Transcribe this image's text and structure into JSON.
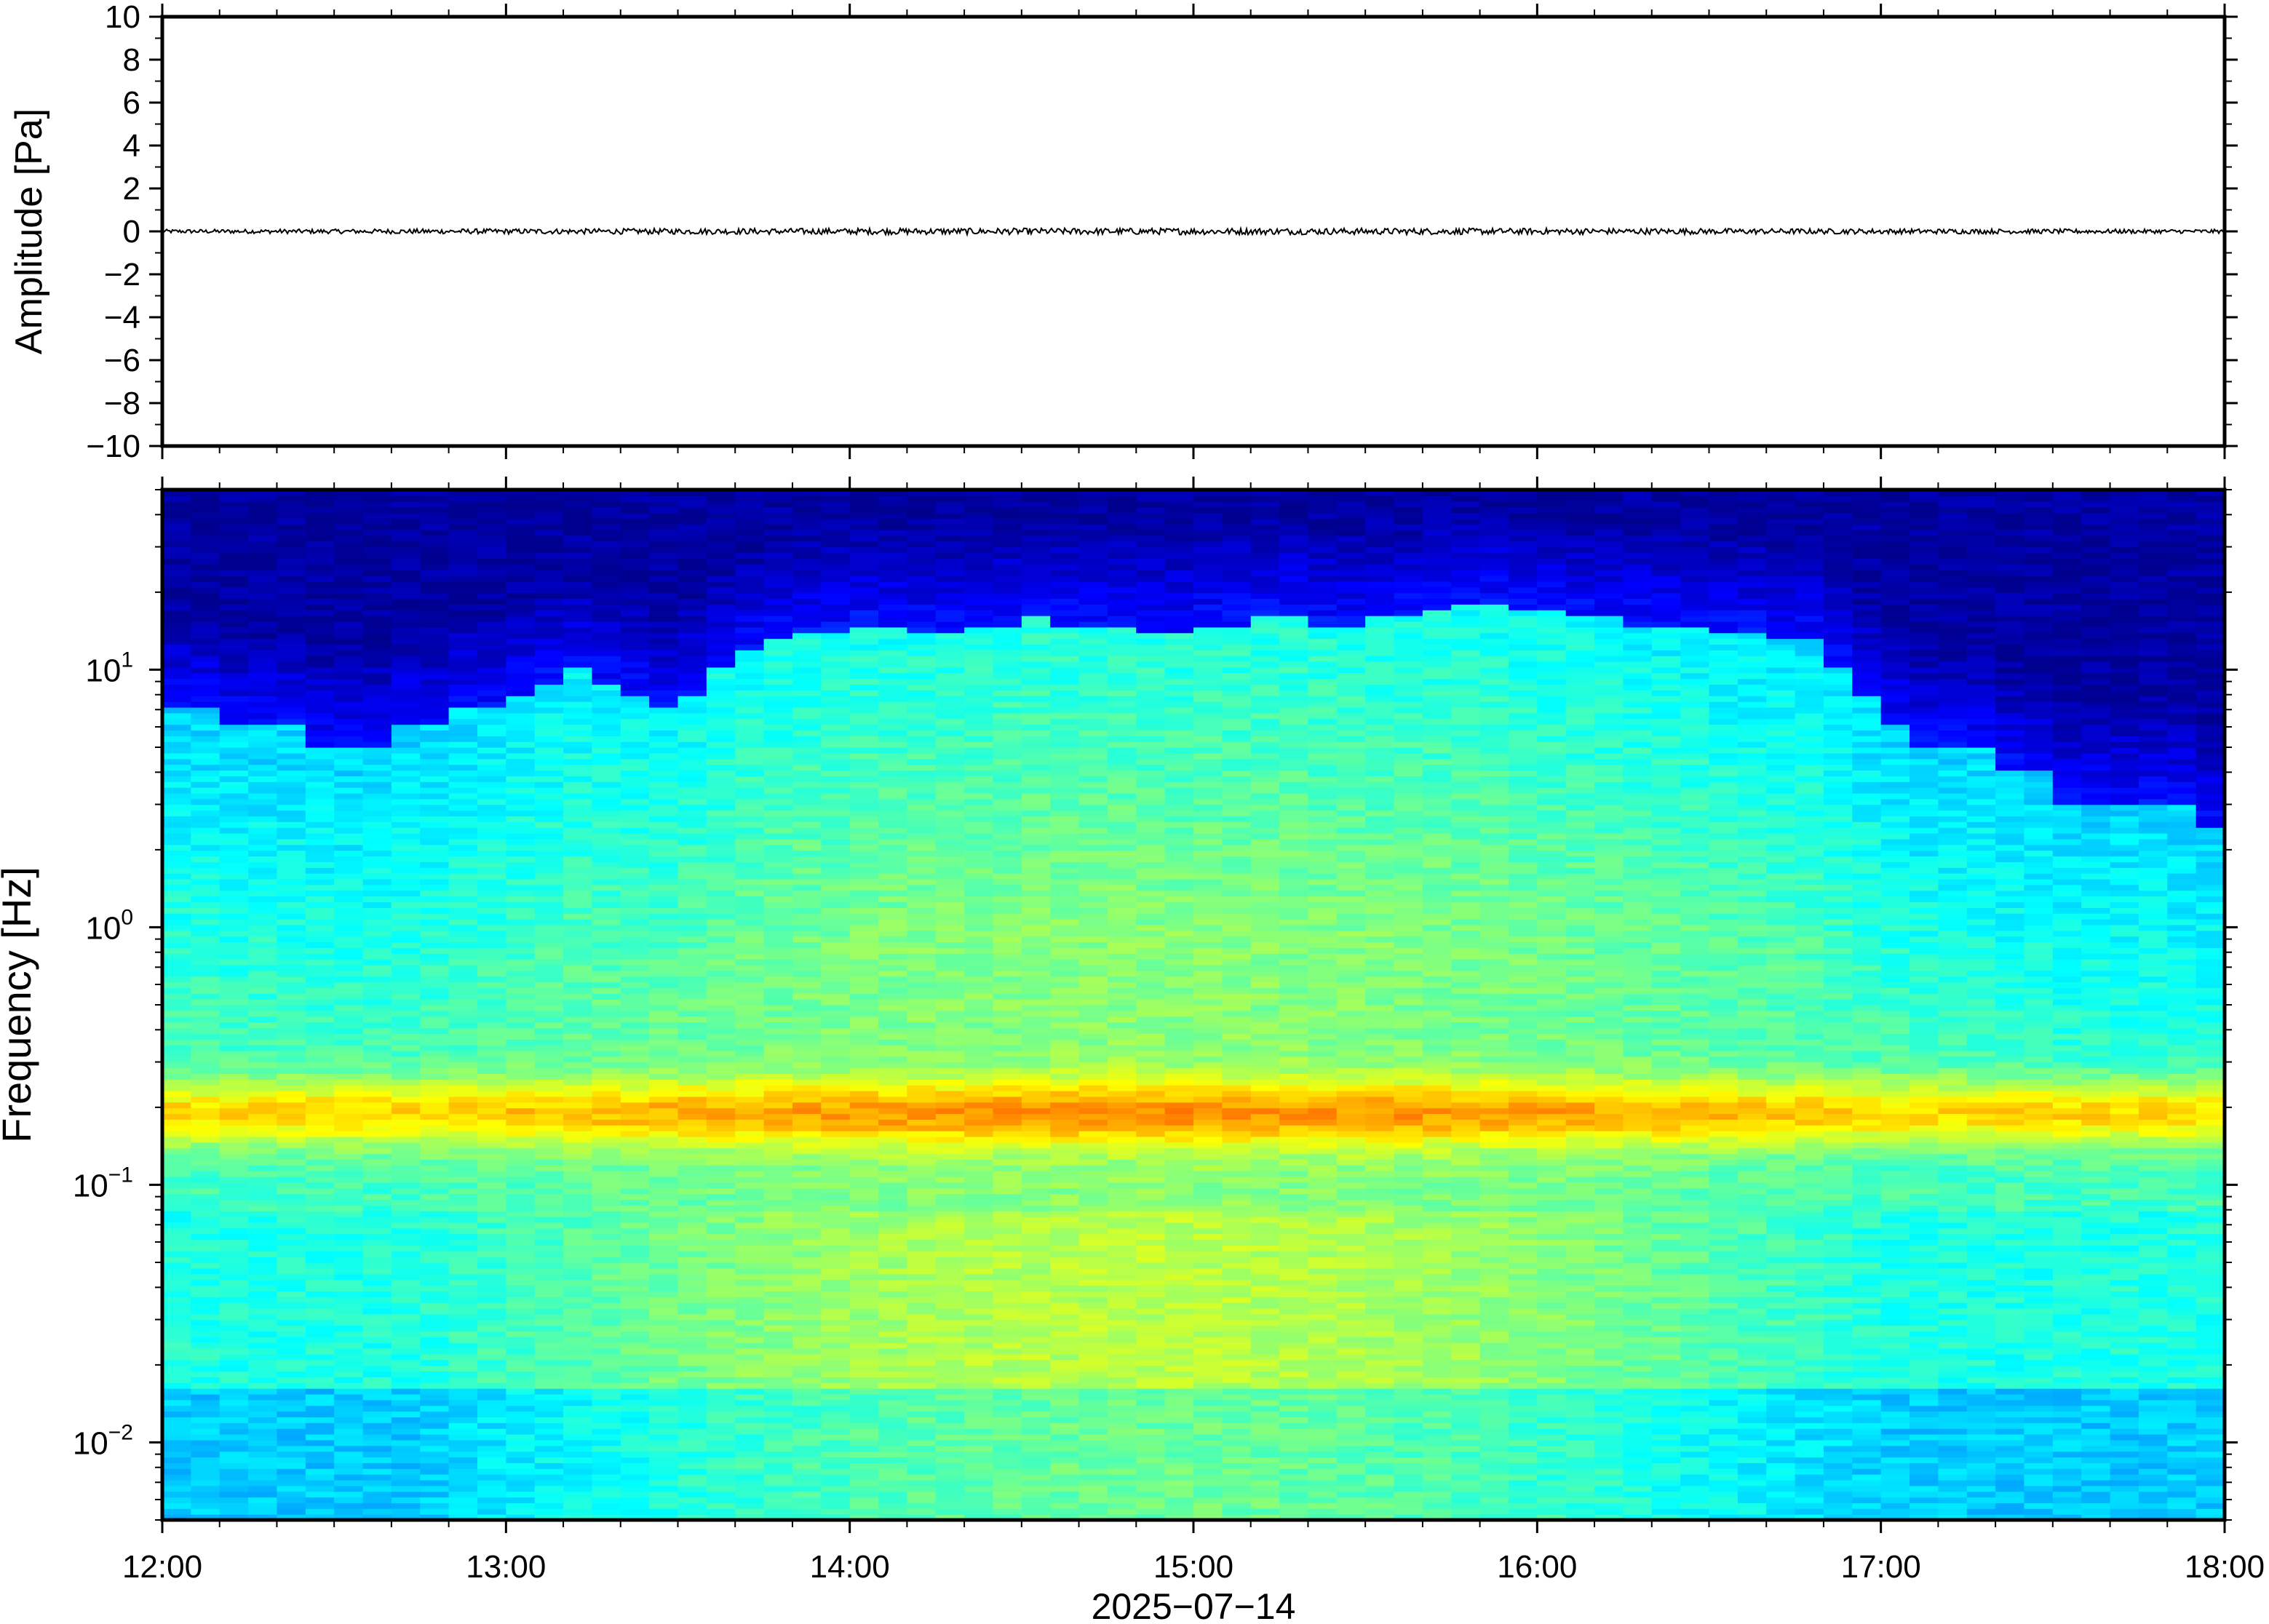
{
  "figure": {
    "date_label": "2025−07−14",
    "time_ticks": [
      "12:00",
      "13:00",
      "14:00",
      "15:00",
      "16:00",
      "17:00",
      "18:00"
    ]
  },
  "chart_data": [
    {
      "type": "line",
      "ylabel": "Amplitude [Pa]",
      "xlim": [
        "2025-07-14 12:00",
        "2025-07-14 18:00"
      ],
      "ylim": [
        -10,
        10
      ],
      "yticks": [
        -10,
        -8,
        -6,
        -4,
        -2,
        0,
        2,
        4,
        6,
        8,
        10
      ],
      "ytick_labels": [
        "−10",
        "−8",
        "−6",
        "−4",
        "−2",
        "0",
        "2",
        "4",
        "6",
        "8",
        "10"
      ],
      "series": [
        {
          "x_range": [
            "12:00",
            "18:00"
          ],
          "mean": 0,
          "approx_peak_abs": 0.15,
          "color": "#000000"
        }
      ],
      "grid": false
    },
    {
      "type": "heatmap",
      "ylabel": "Frequency [Hz]",
      "xlabel": "2025−07−14",
      "xlim": [
        "2025-07-14 12:00",
        "2025-07-14 18:00"
      ],
      "y_scale": "log",
      "ylim": [
        0.005,
        50
      ],
      "yticks": [
        0.01,
        0.1,
        1,
        10
      ],
      "ytick_labels": [
        {
          "base": "10",
          "exp": "−2"
        },
        {
          "base": "10",
          "exp": "−1"
        },
        {
          "base": "10",
          "exp": "0"
        },
        {
          "base": "10",
          "exp": "1"
        }
      ],
      "colormap": "jet",
      "colormap_stops": [
        "#00008f",
        "#0000ff",
        "#0080ff",
        "#00ffff",
        "#80ff80",
        "#ffff00",
        "#ff8000",
        "#ff0000"
      ],
      "time_bins": 72,
      "upper_energy_edge_hz": [
        7,
        7,
        6,
        6,
        6,
        5,
        5,
        5,
        6,
        6,
        7,
        7,
        8,
        9,
        10,
        9,
        8,
        7,
        8,
        10,
        12,
        13,
        14,
        14,
        15,
        15,
        14,
        14,
        15,
        15,
        16,
        15,
        15,
        15,
        14,
        14,
        15,
        15,
        16,
        16,
        15,
        15,
        16,
        16,
        17,
        18,
        18,
        17,
        17,
        16,
        16,
        15,
        15,
        15,
        14,
        14,
        13,
        13,
        10,
        8,
        6,
        5,
        5,
        5,
        4,
        4,
        3,
        3,
        3,
        3,
        3,
        2.5
      ],
      "microseism_peak_hz": 0.19,
      "grid": false
    }
  ]
}
